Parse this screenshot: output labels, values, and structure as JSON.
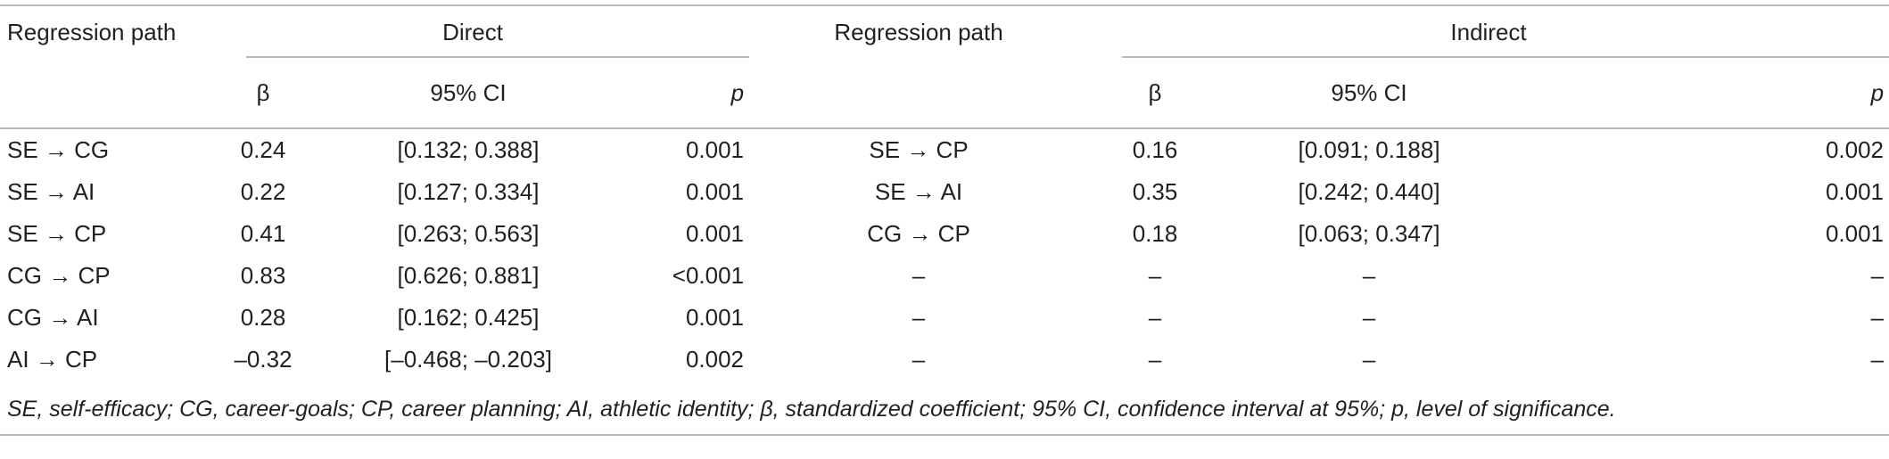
{
  "headers": {
    "left_path": "Regression path",
    "direct": "Direct",
    "right_path": "Regression path",
    "indirect": "Indirect",
    "beta": "β",
    "ci": "95% CI",
    "p": "p"
  },
  "rows": [
    {
      "d_path": "SE → CG",
      "d_beta": "0.24",
      "d_ci": "[0.132; 0.388]",
      "d_p": "0.001",
      "i_path": "SE → CP",
      "i_beta": "0.16",
      "i_ci": "[0.091; 0.188]",
      "i_p": "0.002"
    },
    {
      "d_path": "SE → AI",
      "d_beta": "0.22",
      "d_ci": "[0.127; 0.334]",
      "d_p": "0.001",
      "i_path": "SE → AI",
      "i_beta": "0.35",
      "i_ci": "[0.242; 0.440]",
      "i_p": "0.001"
    },
    {
      "d_path": "SE → CP",
      "d_beta": "0.41",
      "d_ci": "[0.263; 0.563]",
      "d_p": "0.001",
      "i_path": "CG → CP",
      "i_beta": "0.18",
      "i_ci": "[0.063; 0.347]",
      "i_p": "0.001"
    },
    {
      "d_path": "CG → CP",
      "d_beta": "0.83",
      "d_ci": "[0.626; 0.881]",
      "d_p": "<0.001",
      "i_path": "–",
      "i_beta": "–",
      "i_ci": "–",
      "i_p": "–"
    },
    {
      "d_path": "CG → AI",
      "d_beta": "0.28",
      "d_ci": "[0.162; 0.425]",
      "d_p": "0.001",
      "i_path": "–",
      "i_beta": "–",
      "i_ci": "–",
      "i_p": "–"
    },
    {
      "d_path": "AI → CP",
      "d_beta": "–0.32",
      "d_ci": "[–0.468; –0.203]",
      "d_p": "0.002",
      "i_path": "–",
      "i_beta": "–",
      "i_ci": "–",
      "i_p": "–"
    }
  ],
  "footnote": "SE, self-efficacy; CG, career-goals; CP, career planning; AI, athletic identity; β, standardized coefficient; 95% CI, confidence interval at 95%; p, level of significance."
}
